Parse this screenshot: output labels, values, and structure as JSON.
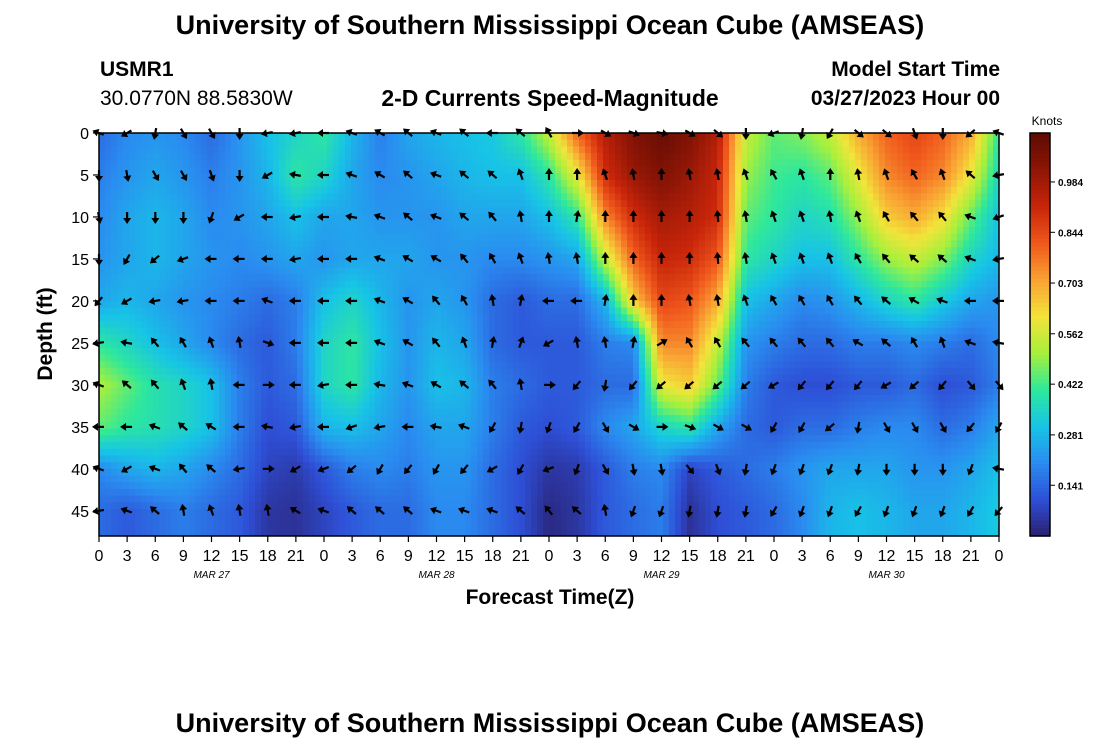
{
  "page": {
    "title": "University of Southern Mississippi Ocean Cube (AMSEAS)",
    "footer_title": "University of Southern Mississippi Ocean Cube (AMSEAS)",
    "station_id": "USMR1",
    "station_coords": "30.0770N  88.5830W",
    "plot_title": "2-D Currents Speed-Magnitude",
    "model_start_label": "Model Start Time",
    "model_start_value": "03/27/2023 Hour 00"
  },
  "chart_data": {
    "type": "heatmap",
    "title": "2-D Currents Speed-Magnitude",
    "xlabel": "Forecast Time(Z)",
    "ylabel": "Depth (ft)",
    "x_hours": [
      0,
      3,
      6,
      9,
      12,
      15,
      18,
      21,
      24,
      27,
      30,
      33,
      36,
      39,
      42,
      45,
      48,
      51,
      54,
      57,
      60,
      63,
      66,
      69,
      72,
      75,
      78,
      81,
      84,
      87,
      90,
      93,
      96
    ],
    "x_tick_labels": [
      "0",
      "3",
      "6",
      "9",
      "12",
      "15",
      "18",
      "21",
      "0",
      "3",
      "6",
      "9",
      "12",
      "15",
      "18",
      "21",
      "0",
      "3",
      "6",
      "9",
      "12",
      "15",
      "18",
      "21",
      "0",
      "3",
      "6",
      "9",
      "12",
      "15",
      "18",
      "21",
      "0"
    ],
    "date_labels": [
      {
        "text": "MAR 27",
        "hour": 12
      },
      {
        "text": "MAR 28",
        "hour": 36
      },
      {
        "text": "MAR 29",
        "hour": 60
      },
      {
        "text": "MAR 30",
        "hour": 84
      }
    ],
    "depths_ft": [
      0,
      5,
      10,
      15,
      20,
      25,
      30,
      35,
      40,
      45
    ],
    "y_tick_labels": [
      "0",
      "5",
      "10",
      "15",
      "20",
      "25",
      "30",
      "35",
      "40",
      "45"
    ],
    "ylim": [
      0,
      48
    ],
    "xlim": [
      0,
      96
    ],
    "colorbar": {
      "unit": "Knots",
      "range": [
        0,
        1.12
      ],
      "ticks": [
        0.141,
        0.281,
        0.422,
        0.562,
        0.703,
        0.844,
        0.984
      ],
      "tick_labels": [
        "0.141",
        "0.281",
        "0.422",
        "0.562",
        "0.703",
        "0.844",
        "0.984"
      ],
      "colors": [
        "#2a1f6e",
        "#2e4fd6",
        "#2a8cf0",
        "#17c4e6",
        "#2ee89c",
        "#a6f03c",
        "#f2e43a",
        "#f9a233",
        "#f0581c",
        "#c8250a",
        "#8f1606",
        "#5e0b03"
      ]
    },
    "speed_grid_knots": [
      [
        0.15,
        0.2,
        0.22,
        0.2,
        0.15,
        0.22,
        0.3,
        0.35,
        0.4,
        0.28,
        0.18,
        0.25,
        0.28,
        0.3,
        0.32,
        0.4,
        0.55,
        0.8,
        0.95,
        1.05,
        1.1,
        1.05,
        0.95,
        0.55,
        0.45,
        0.48,
        0.55,
        0.7,
        0.8,
        0.85,
        0.8,
        0.7,
        0.4
      ],
      [
        0.18,
        0.22,
        0.25,
        0.22,
        0.18,
        0.22,
        0.28,
        0.4,
        0.35,
        0.25,
        0.2,
        0.22,
        0.25,
        0.28,
        0.3,
        0.3,
        0.4,
        0.6,
        0.9,
        1.0,
        1.05,
        1.0,
        0.92,
        0.5,
        0.42,
        0.4,
        0.45,
        0.6,
        0.75,
        0.8,
        0.75,
        0.6,
        0.35
      ],
      [
        0.2,
        0.25,
        0.28,
        0.25,
        0.2,
        0.22,
        0.25,
        0.3,
        0.25,
        0.25,
        0.22,
        0.22,
        0.22,
        0.25,
        0.25,
        0.25,
        0.3,
        0.4,
        0.75,
        0.9,
        0.98,
        0.95,
        0.9,
        0.45,
        0.4,
        0.35,
        0.38,
        0.5,
        0.65,
        0.7,
        0.62,
        0.45,
        0.3
      ],
      [
        0.22,
        0.25,
        0.28,
        0.25,
        0.22,
        0.2,
        0.22,
        0.25,
        0.22,
        0.25,
        0.25,
        0.25,
        0.22,
        0.22,
        0.2,
        0.2,
        0.22,
        0.25,
        0.55,
        0.8,
        0.92,
        0.9,
        0.82,
        0.4,
        0.35,
        0.3,
        0.3,
        0.4,
        0.5,
        0.55,
        0.48,
        0.35,
        0.28
      ],
      [
        0.25,
        0.28,
        0.25,
        0.22,
        0.2,
        0.18,
        0.15,
        0.18,
        0.3,
        0.35,
        0.28,
        0.22,
        0.25,
        0.22,
        0.15,
        0.12,
        0.15,
        0.15,
        0.28,
        0.65,
        0.85,
        0.82,
        0.7,
        0.3,
        0.25,
        0.2,
        0.22,
        0.28,
        0.35,
        0.4,
        0.32,
        0.25,
        0.22
      ],
      [
        0.4,
        0.35,
        0.3,
        0.25,
        0.2,
        0.15,
        0.12,
        0.18,
        0.35,
        0.4,
        0.3,
        0.22,
        0.28,
        0.25,
        0.15,
        0.12,
        0.12,
        0.12,
        0.18,
        0.2,
        0.75,
        0.75,
        0.55,
        0.22,
        0.18,
        0.15,
        0.15,
        0.18,
        0.18,
        0.2,
        0.18,
        0.15,
        0.2
      ],
      [
        0.52,
        0.45,
        0.38,
        0.35,
        0.3,
        0.18,
        0.12,
        0.15,
        0.35,
        0.4,
        0.28,
        0.22,
        0.3,
        0.28,
        0.18,
        0.15,
        0.12,
        0.12,
        0.15,
        0.15,
        0.6,
        0.65,
        0.45,
        0.18,
        0.12,
        0.1,
        0.1,
        0.12,
        0.12,
        0.15,
        0.1,
        0.12,
        0.18
      ],
      [
        0.45,
        0.4,
        0.38,
        0.35,
        0.3,
        0.18,
        0.1,
        0.12,
        0.28,
        0.3,
        0.25,
        0.2,
        0.25,
        0.25,
        0.18,
        0.12,
        0.1,
        0.12,
        0.2,
        0.25,
        0.35,
        0.4,
        0.25,
        0.15,
        0.12,
        0.15,
        0.15,
        0.18,
        0.2,
        0.2,
        0.15,
        0.18,
        0.25
      ],
      [
        0.2,
        0.25,
        0.28,
        0.25,
        0.2,
        0.15,
        0.08,
        0.06,
        0.12,
        0.18,
        0.2,
        0.18,
        0.22,
        0.22,
        0.15,
        0.1,
        0.05,
        0.06,
        0.12,
        0.18,
        0.2,
        0.08,
        0.12,
        0.15,
        0.18,
        0.22,
        0.25,
        0.25,
        0.25,
        0.22,
        0.22,
        0.25,
        0.3
      ],
      [
        0.15,
        0.12,
        0.15,
        0.18,
        0.15,
        0.12,
        0.05,
        0.04,
        0.08,
        0.12,
        0.15,
        0.15,
        0.2,
        0.2,
        0.15,
        0.1,
        0.02,
        0.05,
        0.12,
        0.15,
        0.18,
        0.04,
        0.1,
        0.12,
        0.15,
        0.2,
        0.28,
        0.3,
        0.28,
        0.25,
        0.25,
        0.28,
        0.32
      ]
    ],
    "direction_grid_deg": [
      [
        200,
        150,
        100,
        60,
        60,
        90,
        170,
        170,
        180,
        200,
        210,
        220,
        200,
        220,
        180,
        220,
        240,
        0,
        30,
        20,
        10,
        30,
        40,
        90,
        160,
        100,
        120,
        40,
        40,
        70,
        90,
        140,
        200
      ],
      [
        90,
        80,
        60,
        60,
        70,
        90,
        150,
        190,
        180,
        200,
        210,
        220,
        200,
        220,
        220,
        250,
        270,
        270,
        250,
        260,
        270,
        260,
        260,
        250,
        240,
        250,
        270,
        260,
        250,
        240,
        250,
        220,
        170
      ],
      [
        80,
        90,
        90,
        90,
        110,
        150,
        180,
        170,
        180,
        190,
        200,
        220,
        200,
        220,
        230,
        260,
        270,
        280,
        270,
        270,
        270,
        270,
        265,
        260,
        250,
        250,
        260,
        250,
        240,
        230,
        230,
        200,
        160
      ],
      [
        90,
        120,
        140,
        160,
        180,
        180,
        180,
        170,
        180,
        180,
        200,
        210,
        210,
        230,
        240,
        250,
        260,
        260,
        270,
        270,
        270,
        270,
        265,
        260,
        250,
        250,
        250,
        240,
        230,
        220,
        220,
        200,
        170
      ],
      [
        130,
        150,
        170,
        170,
        180,
        180,
        200,
        180,
        180,
        180,
        200,
        210,
        230,
        240,
        260,
        280,
        180,
        180,
        280,
        270,
        270,
        260,
        260,
        250,
        240,
        240,
        240,
        230,
        220,
        210,
        200,
        180,
        180
      ],
      [
        170,
        190,
        230,
        240,
        250,
        260,
        20,
        180,
        180,
        180,
        200,
        210,
        230,
        250,
        280,
        290,
        150,
        260,
        260,
        280,
        330,
        240,
        240,
        230,
        230,
        230,
        230,
        210,
        220,
        240,
        250,
        200,
        190
      ],
      [
        200,
        220,
        230,
        250,
        260,
        180,
        0,
        180,
        170,
        180,
        190,
        200,
        210,
        220,
        230,
        260,
        0,
        130,
        100,
        130,
        140,
        140,
        140,
        140,
        150,
        130,
        130,
        130,
        150,
        140,
        130,
        50,
        50
      ],
      [
        180,
        180,
        200,
        220,
        210,
        180,
        190,
        170,
        180,
        160,
        170,
        180,
        190,
        200,
        120,
        100,
        110,
        120,
        60,
        30,
        0,
        20,
        30,
        30,
        120,
        120,
        140,
        100,
        60,
        60,
        60,
        130,
        120
      ],
      [
        200,
        150,
        200,
        230,
        220,
        170,
        0,
        150,
        160,
        140,
        120,
        130,
        120,
        130,
        150,
        120,
        160,
        110,
        60,
        80,
        80,
        50,
        70,
        100,
        110,
        110,
        110,
        100,
        90,
        90,
        90,
        110,
        190
      ],
      [
        170,
        200,
        220,
        260,
        250,
        260,
        260,
        210,
        200,
        220,
        220,
        220,
        200,
        200,
        200,
        220,
        230,
        220,
        260,
        110,
        110,
        100,
        100,
        100,
        120,
        110,
        110,
        120,
        110,
        110,
        110,
        120,
        130
      ]
    ]
  }
}
